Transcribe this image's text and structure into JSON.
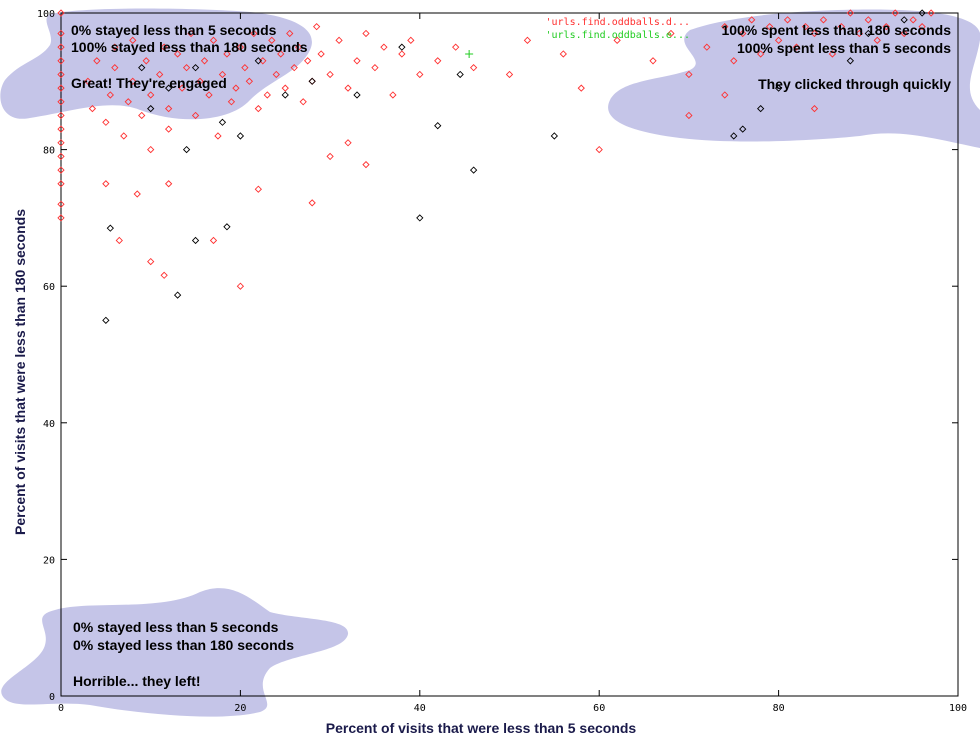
{
  "chart_data": {
    "type": "scatter",
    "title": "",
    "xlabel": "Percent of visits that were less than 5 seconds",
    "ylabel": "Percent of visits that were less than 180 seconds",
    "xlim": [
      0,
      100
    ],
    "ylim": [
      0,
      100
    ],
    "xticks": [
      0,
      20,
      40,
      60,
      80,
      100
    ],
    "yticks": [
      0,
      20,
      40,
      60,
      80,
      100
    ],
    "grid": false,
    "legend_position": "top-right",
    "series": [
      {
        "name": "'urls.find.oddballs.d...",
        "color": "#ff3030",
        "marker": "diamond",
        "points": [
          [
            0,
            70
          ],
          [
            0,
            72
          ],
          [
            0,
            75
          ],
          [
            0,
            77
          ],
          [
            0,
            79
          ],
          [
            0,
            81
          ],
          [
            0,
            83
          ],
          [
            0,
            85
          ],
          [
            0,
            87
          ],
          [
            0,
            89
          ],
          [
            0,
            91
          ],
          [
            0,
            93
          ],
          [
            0,
            95
          ],
          [
            0,
            97
          ],
          [
            0,
            100
          ],
          [
            3,
            90
          ],
          [
            3.5,
            86
          ],
          [
            4,
            93
          ],
          [
            5,
            84
          ],
          [
            5.5,
            88
          ],
          [
            6,
            92
          ],
          [
            6,
            95
          ],
          [
            7,
            82
          ],
          [
            7.5,
            87
          ],
          [
            8,
            90
          ],
          [
            8,
            96
          ],
          [
            9,
            85
          ],
          [
            9.5,
            93
          ],
          [
            10,
            88
          ],
          [
            10,
            80
          ],
          [
            11,
            91
          ],
          [
            11.5,
            95
          ],
          [
            12,
            86
          ],
          [
            12,
            83
          ],
          [
            13,
            94
          ],
          [
            13.5,
            89
          ],
          [
            14,
            92
          ],
          [
            14.5,
            97
          ],
          [
            15,
            85
          ],
          [
            15.5,
            90
          ],
          [
            16,
            93
          ],
          [
            16.5,
            88
          ],
          [
            17,
            96
          ],
          [
            17.5,
            82
          ],
          [
            18,
            91
          ],
          [
            18.5,
            94
          ],
          [
            19,
            87
          ],
          [
            19.5,
            89
          ],
          [
            20,
            95
          ],
          [
            20.5,
            92
          ],
          [
            21,
            90
          ],
          [
            21.5,
            97
          ],
          [
            22,
            86
          ],
          [
            22.5,
            93
          ],
          [
            23,
            88
          ],
          [
            23.5,
            96
          ],
          [
            24,
            91
          ],
          [
            24.5,
            94
          ],
          [
            25,
            89
          ],
          [
            25.5,
            97
          ],
          [
            26,
            92
          ],
          [
            26.5,
            95
          ],
          [
            27,
            87
          ],
          [
            27.5,
            93
          ],
          [
            28,
            90
          ],
          [
            28.5,
            98
          ],
          [
            29,
            94
          ],
          [
            30,
            91
          ],
          [
            31,
            96
          ],
          [
            32,
            89
          ],
          [
            33,
            93
          ],
          [
            34,
            97
          ],
          [
            35,
            92
          ],
          [
            36,
            95
          ],
          [
            37,
            88
          ],
          [
            38,
            94
          ],
          [
            39,
            96
          ],
          [
            40,
            91
          ],
          [
            42,
            93
          ],
          [
            44,
            95
          ],
          [
            46,
            92
          ],
          [
            50,
            91
          ],
          [
            52,
            96
          ],
          [
            56,
            94
          ],
          [
            58,
            89
          ],
          [
            62,
            96
          ],
          [
            66,
            93
          ],
          [
            68,
            97
          ],
          [
            70,
            91
          ],
          [
            72,
            95
          ],
          [
            74,
            98
          ],
          [
            75,
            93
          ],
          [
            76,
            97
          ],
          [
            77,
            99
          ],
          [
            78,
            94
          ],
          [
            79,
            98
          ],
          [
            80,
            96
          ],
          [
            81,
            99
          ],
          [
            82,
            95
          ],
          [
            83,
            98
          ],
          [
            84,
            97
          ],
          [
            85,
            99
          ],
          [
            86,
            94
          ],
          [
            87,
            98
          ],
          [
            88,
            100
          ],
          [
            89,
            97
          ],
          [
            90,
            99
          ],
          [
            91,
            96
          ],
          [
            92,
            98
          ],
          [
            93,
            100
          ],
          [
            94,
            97
          ],
          [
            95,
            99
          ],
          [
            96,
            98
          ],
          [
            97,
            100
          ],
          [
            74,
            88
          ],
          [
            84,
            86
          ],
          [
            70,
            85
          ],
          [
            20,
            60
          ],
          [
            6.5,
            66.7
          ],
          [
            17,
            66.7
          ],
          [
            10,
            63.6
          ],
          [
            11.5,
            61.6
          ],
          [
            28,
            72.2
          ],
          [
            22,
            74.2
          ],
          [
            34,
            77.8
          ],
          [
            60,
            80
          ],
          [
            8.5,
            73.5
          ],
          [
            12,
            75
          ],
          [
            5,
            75
          ],
          [
            30,
            79
          ],
          [
            32,
            81
          ]
        ]
      },
      {
        "name": "'urls.find.oddballs.e...",
        "color": "#000000",
        "marker": "diamond",
        "points": [
          [
            5,
            55
          ],
          [
            5.5,
            68.5
          ],
          [
            15,
            66.7
          ],
          [
            18.5,
            68.7
          ],
          [
            13,
            58.7
          ],
          [
            40,
            70
          ],
          [
            46,
            77
          ],
          [
            55,
            82
          ],
          [
            42,
            83.5
          ],
          [
            44.5,
            91
          ],
          [
            38,
            95
          ],
          [
            25,
            88
          ],
          [
            12,
            89
          ],
          [
            9,
            92
          ],
          [
            18,
            84
          ],
          [
            15,
            92
          ],
          [
            22,
            93
          ],
          [
            28,
            90
          ],
          [
            33,
            88
          ],
          [
            14,
            80
          ],
          [
            10,
            86
          ],
          [
            20,
            82
          ],
          [
            75,
            82
          ],
          [
            76,
            83
          ],
          [
            78,
            86
          ],
          [
            80,
            89
          ],
          [
            88,
            93
          ],
          [
            90,
            97
          ],
          [
            94,
            99
          ],
          [
            96,
            100
          ]
        ]
      },
      {
        "name": "",
        "color": "#22cc22",
        "marker": "plus",
        "points": [
          [
            45.5,
            94
          ]
        ]
      }
    ],
    "annotations": {
      "top_left": [
        "0% stayed less than 5 seconds",
        "100% stayed less than 180 seconds",
        "Great!  They're engaged"
      ],
      "top_right": [
        "100% spent less than 180 seconds",
        "100% spent less than 5 seconds",
        "They clicked through quickly"
      ],
      "bottom_left": [
        "0% stayed less than 5 seconds",
        "0% stayed less than 180 seconds",
        "Horrible... they left!"
      ]
    }
  }
}
